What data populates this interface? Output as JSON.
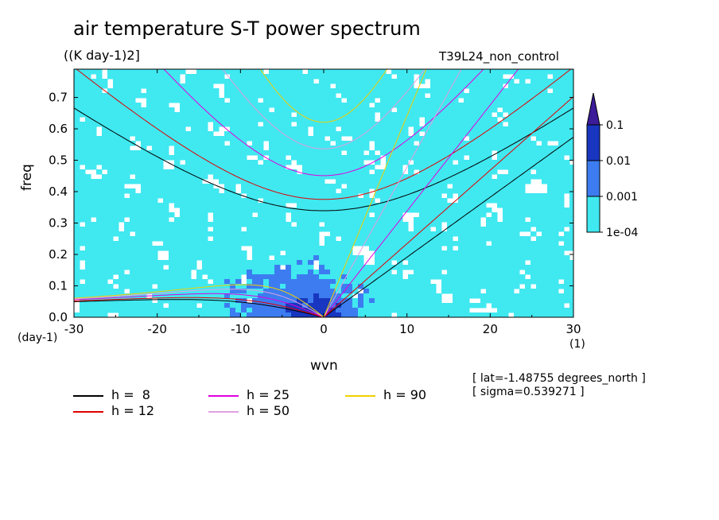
{
  "title": "air temperature S-T power spectrum",
  "units": "((K day-1)2]",
  "run_label": "T39L24_non_control",
  "info": {
    "lat": "[ lat=-1.48755 degrees_north ]",
    "sigma": "[ sigma=0.539271 ]"
  },
  "chart_data": {
    "type": "heatmap",
    "title": "air temperature S-T power spectrum",
    "xlabel": "wvn",
    "ylabel": "freq",
    "x_unit": "(1)",
    "y_unit": "(day-1)",
    "xlim": [
      -30,
      30
    ],
    "ylim": [
      0,
      0.79
    ],
    "x_ticks": [
      "-30",
      "-20",
      "-10",
      "0",
      "10",
      "20",
      "30"
    ],
    "y_ticks": [
      "0.0",
      "0.1",
      "0.2",
      "0.3",
      "0.4",
      "0.5",
      "0.6",
      "0.7"
    ],
    "colorbar": {
      "levels": [
        "1e-04",
        "0.001",
        "0.01",
        "0.1"
      ],
      "colors": [
        "#40e8f0",
        "#3c7cf0",
        "#1836c0",
        "#3c1c98"
      ]
    },
    "dispersion_curves": [
      {
        "name": "h =  8",
        "h": 8,
        "color": "#000000"
      },
      {
        "name": "h = 12",
        "h": 12,
        "color": "#e00000"
      },
      {
        "name": "h = 25",
        "h": 25,
        "color": "#e000e0"
      },
      {
        "name": "h = 50",
        "h": 50,
        "color": "#e0a0e0"
      },
      {
        "name": "h = 90",
        "h": 90,
        "color": "#f0d000"
      }
    ]
  }
}
